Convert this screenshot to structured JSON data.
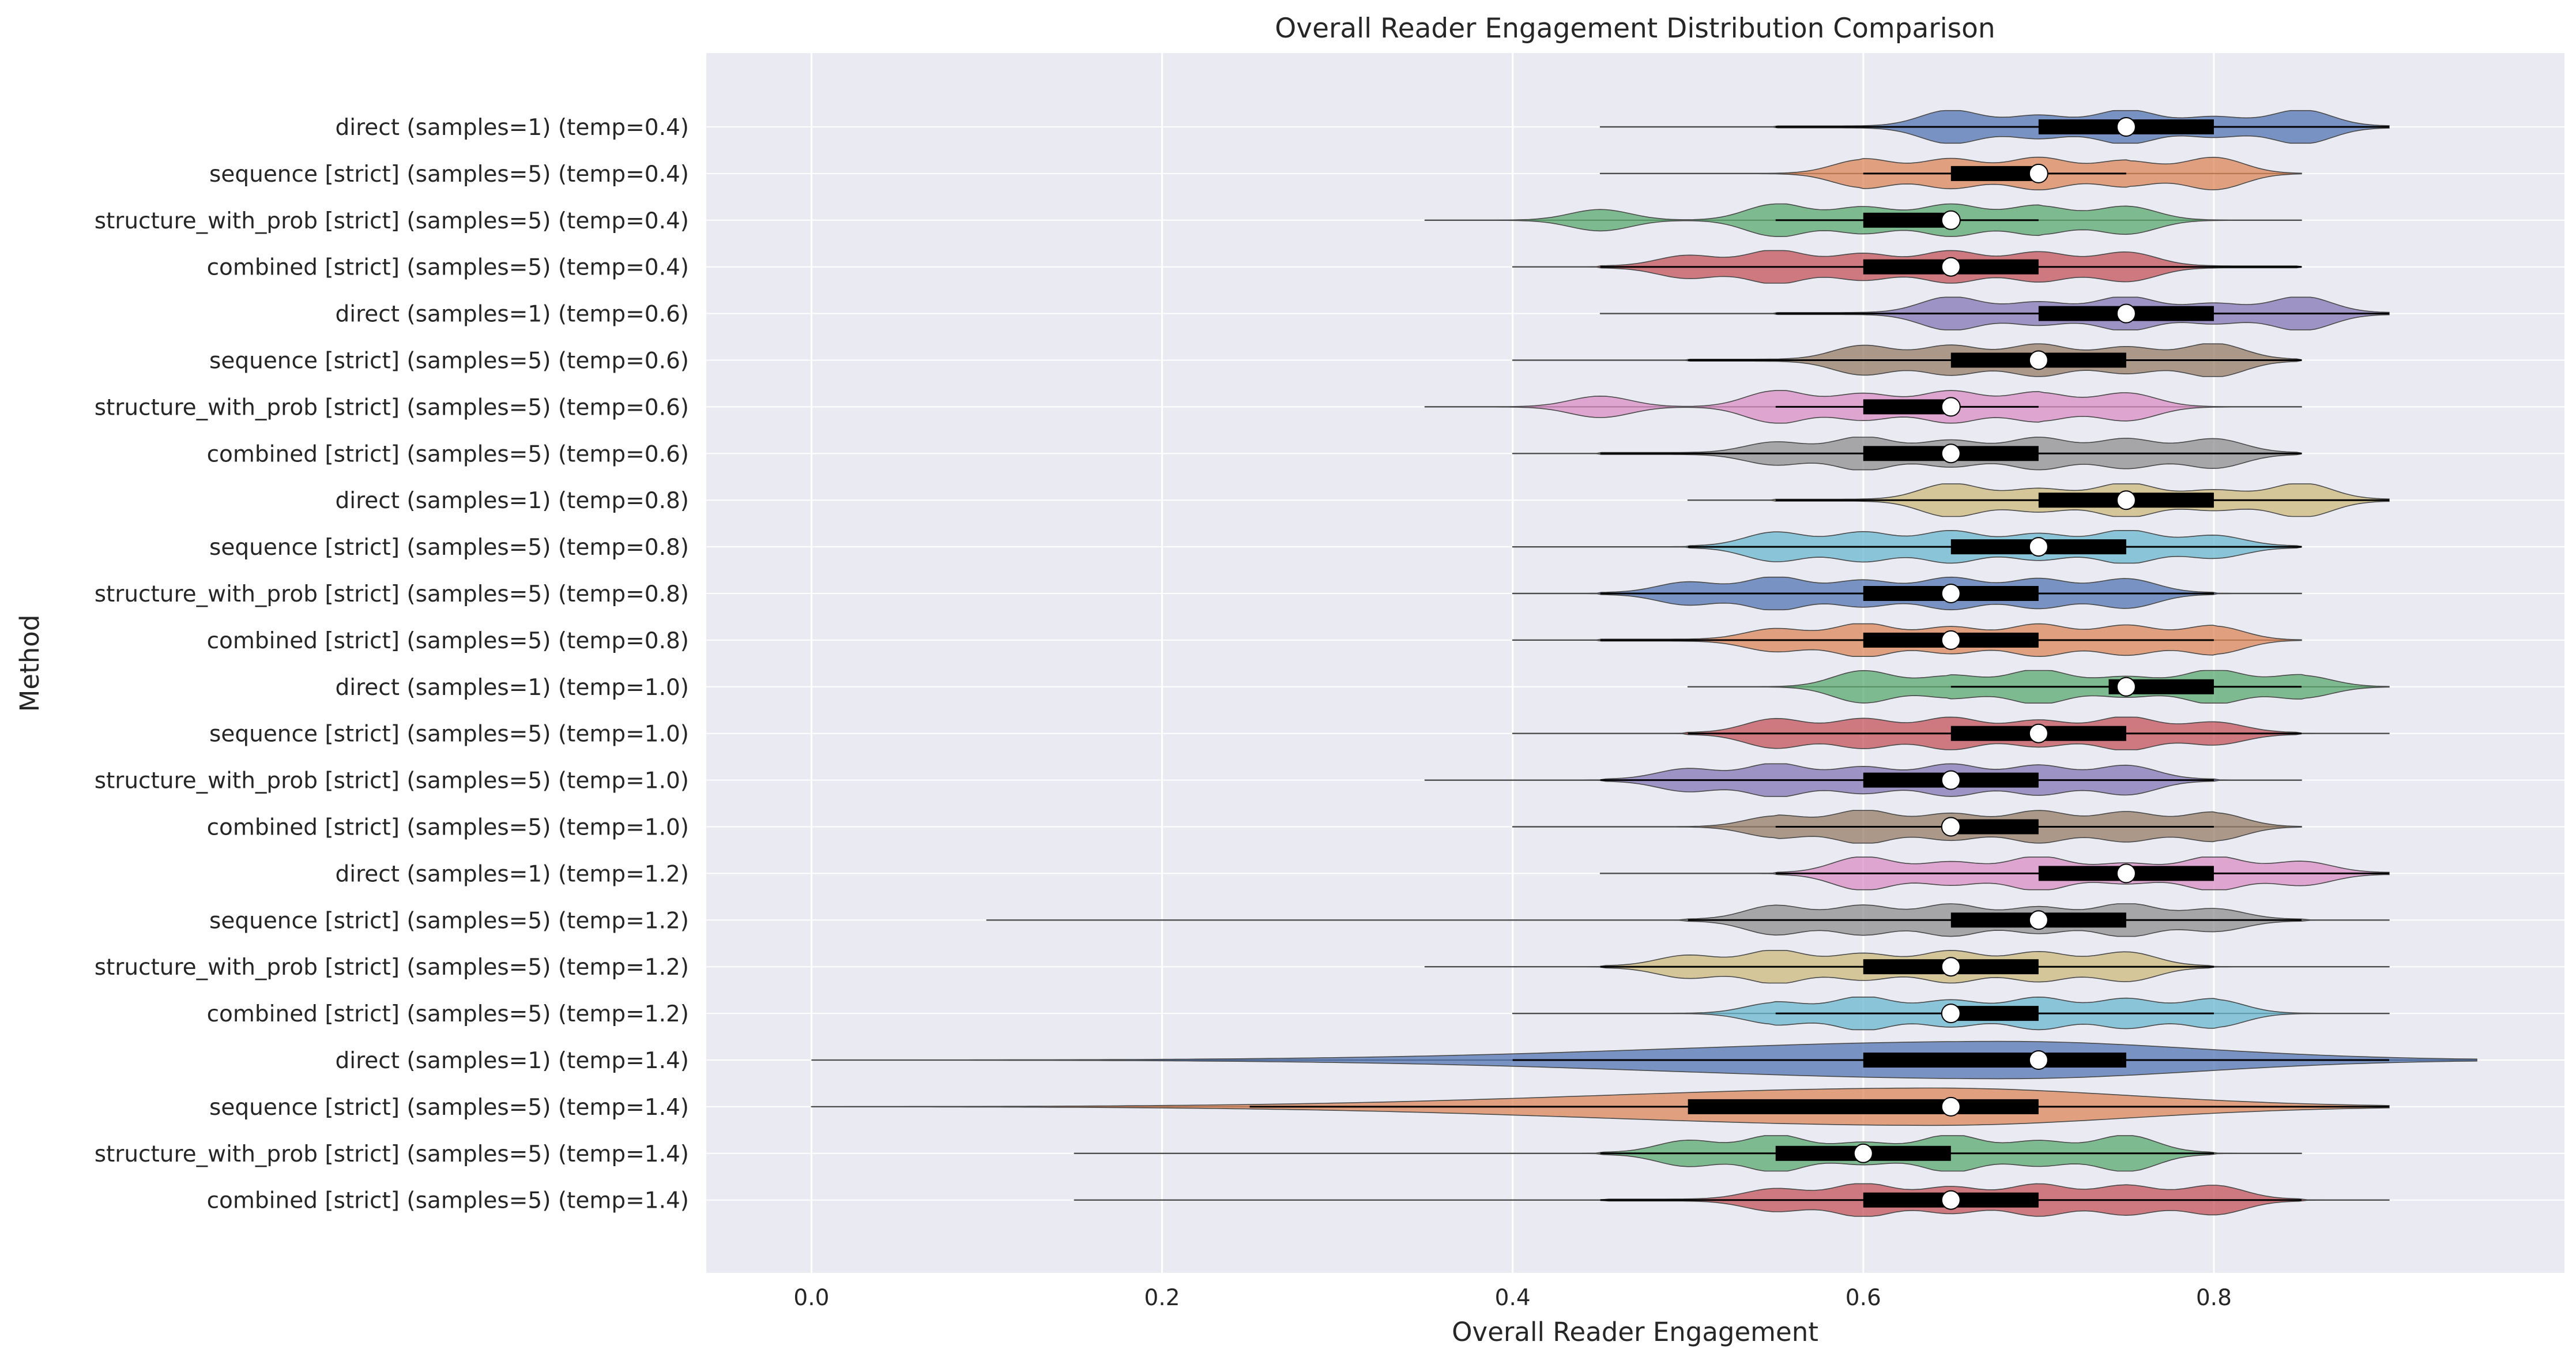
{
  "chart_data": {
    "type": "violin",
    "orientation": "horizontal",
    "title": "Overall Reader Engagement Distribution Comparison",
    "xlabel": "Overall Reader Engagement",
    "ylabel": "Method",
    "xlim": [
      -0.06,
      1.0
    ],
    "xticks": [
      0.0,
      0.2,
      0.4,
      0.6,
      0.8
    ],
    "xtick_labels": [
      "0.0",
      "0.2",
      "0.4",
      "0.6",
      "0.8"
    ],
    "grid": true,
    "background": "#eaeaf2",
    "palette": [
      "#4c72b0",
      "#dd8452",
      "#55a868",
      "#c44e52",
      "#8172b3",
      "#937860",
      "#da8bc3",
      "#8c8c8c",
      "#ccb974",
      "#64b5cd"
    ],
    "categories": [
      "direct (samples=1) (temp=0.4)",
      "sequence [strict] (samples=5) (temp=0.4)",
      "structure_with_prob [strict] (samples=5) (temp=0.4)",
      "combined [strict] (samples=5) (temp=0.4)",
      "direct (samples=1) (temp=0.6)",
      "sequence [strict] (samples=5) (temp=0.6)",
      "structure_with_prob [strict] (samples=5) (temp=0.6)",
      "combined [strict] (samples=5) (temp=0.6)",
      "direct (samples=1) (temp=0.8)",
      "sequence [strict] (samples=5) (temp=0.8)",
      "structure_with_prob [strict] (samples=5) (temp=0.8)",
      "combined [strict] (samples=5) (temp=0.8)",
      "direct (samples=1) (temp=1.0)",
      "sequence [strict] (samples=5) (temp=1.0)",
      "structure_with_prob [strict] (samples=5) (temp=1.0)",
      "combined [strict] (samples=5) (temp=1.0)",
      "direct (samples=1) (temp=1.2)",
      "sequence [strict] (samples=5) (temp=1.2)",
      "structure_with_prob [strict] (samples=5) (temp=1.2)",
      "combined [strict] (samples=5) (temp=1.2)",
      "direct (samples=1) (temp=1.4)",
      "sequence [strict] (samples=5) (temp=1.4)",
      "structure_with_prob [strict] (samples=5) (temp=1.4)",
      "combined [strict] (samples=5) (temp=1.4)"
    ],
    "series": [
      {
        "min": 0.45,
        "q1": 0.7,
        "median": 0.75,
        "q3": 0.8,
        "max": 0.9,
        "wlo": 0.55,
        "whi": 0.9,
        "width": 0.35,
        "peaks": [
          0.65,
          0.7,
          0.75,
          0.8,
          0.85
        ],
        "smooth": false
      },
      {
        "min": 0.45,
        "q1": 0.65,
        "median": 0.7,
        "q3": 0.7,
        "max": 0.85,
        "wlo": 0.6,
        "whi": 0.75,
        "width": 0.35,
        "peaks": [
          0.6,
          0.65,
          0.7,
          0.75,
          0.8
        ],
        "smooth": false
      },
      {
        "min": 0.35,
        "q1": 0.6,
        "median": 0.65,
        "q3": 0.65,
        "max": 0.85,
        "wlo": 0.55,
        "whi": 0.7,
        "width": 0.35,
        "peaks": [
          0.45,
          0.55,
          0.6,
          0.65,
          0.7,
          0.75
        ],
        "smooth": false
      },
      {
        "min": 0.4,
        "q1": 0.6,
        "median": 0.65,
        "q3": 0.7,
        "max": 0.85,
        "wlo": 0.45,
        "whi": 0.85,
        "width": 0.35,
        "peaks": [
          0.5,
          0.55,
          0.6,
          0.65,
          0.7,
          0.75
        ],
        "smooth": false
      },
      {
        "min": 0.45,
        "q1": 0.7,
        "median": 0.75,
        "q3": 0.8,
        "max": 0.9,
        "wlo": 0.55,
        "whi": 0.9,
        "width": 0.35,
        "peaks": [
          0.65,
          0.7,
          0.75,
          0.8,
          0.85
        ],
        "smooth": false
      },
      {
        "min": 0.4,
        "q1": 0.65,
        "median": 0.7,
        "q3": 0.75,
        "max": 0.85,
        "wlo": 0.5,
        "whi": 0.85,
        "width": 0.35,
        "peaks": [
          0.6,
          0.65,
          0.7,
          0.75,
          0.8
        ],
        "smooth": false
      },
      {
        "min": 0.35,
        "q1": 0.6,
        "median": 0.65,
        "q3": 0.65,
        "max": 0.85,
        "wlo": 0.55,
        "whi": 0.7,
        "width": 0.35,
        "peaks": [
          0.45,
          0.55,
          0.6,
          0.65,
          0.7,
          0.75
        ],
        "smooth": false
      },
      {
        "min": 0.4,
        "q1": 0.6,
        "median": 0.65,
        "q3": 0.7,
        "max": 0.85,
        "wlo": 0.45,
        "whi": 0.85,
        "width": 0.35,
        "peaks": [
          0.55,
          0.6,
          0.65,
          0.7,
          0.75,
          0.8
        ],
        "smooth": false
      },
      {
        "min": 0.5,
        "q1": 0.7,
        "median": 0.75,
        "q3": 0.8,
        "max": 0.9,
        "wlo": 0.55,
        "whi": 0.9,
        "width": 0.35,
        "peaks": [
          0.65,
          0.7,
          0.75,
          0.8,
          0.85
        ],
        "smooth": false
      },
      {
        "min": 0.4,
        "q1": 0.65,
        "median": 0.7,
        "q3": 0.75,
        "max": 0.85,
        "wlo": 0.5,
        "whi": 0.85,
        "width": 0.35,
        "peaks": [
          0.55,
          0.6,
          0.65,
          0.7,
          0.75,
          0.8
        ],
        "smooth": false
      },
      {
        "min": 0.4,
        "q1": 0.6,
        "median": 0.65,
        "q3": 0.7,
        "max": 0.85,
        "wlo": 0.45,
        "whi": 0.8,
        "width": 0.35,
        "peaks": [
          0.5,
          0.55,
          0.6,
          0.65,
          0.7,
          0.75
        ],
        "smooth": false
      },
      {
        "min": 0.4,
        "q1": 0.6,
        "median": 0.65,
        "q3": 0.7,
        "max": 0.85,
        "wlo": 0.45,
        "whi": 0.8,
        "width": 0.35,
        "peaks": [
          0.55,
          0.6,
          0.65,
          0.7,
          0.75,
          0.8
        ],
        "smooth": false
      },
      {
        "min": 0.5,
        "q1": 0.74,
        "median": 0.75,
        "q3": 0.8,
        "max": 0.9,
        "wlo": 0.65,
        "whi": 0.85,
        "width": 0.35,
        "peaks": [
          0.6,
          0.65,
          0.7,
          0.75,
          0.8,
          0.85
        ],
        "smooth": false
      },
      {
        "min": 0.4,
        "q1": 0.65,
        "median": 0.7,
        "q3": 0.75,
        "max": 0.9,
        "wlo": 0.5,
        "whi": 0.85,
        "width": 0.35,
        "peaks": [
          0.55,
          0.6,
          0.65,
          0.7,
          0.75,
          0.8
        ],
        "smooth": false
      },
      {
        "min": 0.35,
        "q1": 0.6,
        "median": 0.65,
        "q3": 0.7,
        "max": 0.85,
        "wlo": 0.45,
        "whi": 0.8,
        "width": 0.35,
        "peaks": [
          0.5,
          0.55,
          0.6,
          0.65,
          0.7,
          0.75
        ],
        "smooth": false
      },
      {
        "min": 0.4,
        "q1": 0.65,
        "median": 0.65,
        "q3": 0.7,
        "max": 0.85,
        "wlo": 0.55,
        "whi": 0.8,
        "width": 0.35,
        "peaks": [
          0.55,
          0.6,
          0.65,
          0.7,
          0.75,
          0.8
        ],
        "smooth": false
      },
      {
        "min": 0.45,
        "q1": 0.7,
        "median": 0.75,
        "q3": 0.8,
        "max": 0.9,
        "wlo": 0.55,
        "whi": 0.9,
        "width": 0.35,
        "peaks": [
          0.6,
          0.65,
          0.7,
          0.75,
          0.8,
          0.85
        ],
        "smooth": false
      },
      {
        "min": 0.1,
        "q1": 0.65,
        "median": 0.7,
        "q3": 0.75,
        "max": 0.9,
        "wlo": 0.5,
        "whi": 0.85,
        "width": 0.35,
        "peaks": [
          0.55,
          0.6,
          0.65,
          0.7,
          0.75,
          0.8
        ],
        "smooth": false
      },
      {
        "min": 0.35,
        "q1": 0.6,
        "median": 0.65,
        "q3": 0.7,
        "max": 0.9,
        "wlo": 0.45,
        "whi": 0.8,
        "width": 0.35,
        "peaks": [
          0.5,
          0.55,
          0.6,
          0.65,
          0.7,
          0.75
        ],
        "smooth": false
      },
      {
        "min": 0.4,
        "q1": 0.65,
        "median": 0.65,
        "q3": 0.7,
        "max": 0.9,
        "wlo": 0.55,
        "whi": 0.8,
        "width": 0.35,
        "peaks": [
          0.55,
          0.6,
          0.65,
          0.7,
          0.75,
          0.8
        ],
        "smooth": false
      },
      {
        "min": 0.0,
        "q1": 0.6,
        "median": 0.7,
        "q3": 0.75,
        "max": 0.95,
        "wlo": 0.4,
        "whi": 0.9,
        "width": 0.4,
        "smooth": true,
        "center": 0.68,
        "spread": 0.14
      },
      {
        "min": 0.0,
        "q1": 0.5,
        "median": 0.65,
        "q3": 0.7,
        "max": 0.9,
        "wlo": 0.25,
        "whi": 0.9,
        "width": 0.4,
        "smooth": true,
        "center": 0.64,
        "spread": 0.14
      },
      {
        "min": 0.15,
        "q1": 0.55,
        "median": 0.6,
        "q3": 0.65,
        "max": 0.85,
        "wlo": 0.45,
        "whi": 0.8,
        "width": 0.38,
        "smooth": false,
        "peaks": [
          0.5,
          0.55,
          0.6,
          0.65,
          0.7,
          0.75
        ]
      },
      {
        "min": 0.15,
        "q1": 0.6,
        "median": 0.65,
        "q3": 0.7,
        "max": 0.9,
        "wlo": 0.45,
        "whi": 0.85,
        "width": 0.35,
        "smooth": false,
        "peaks": [
          0.55,
          0.6,
          0.65,
          0.7,
          0.75,
          0.8
        ]
      }
    ]
  }
}
